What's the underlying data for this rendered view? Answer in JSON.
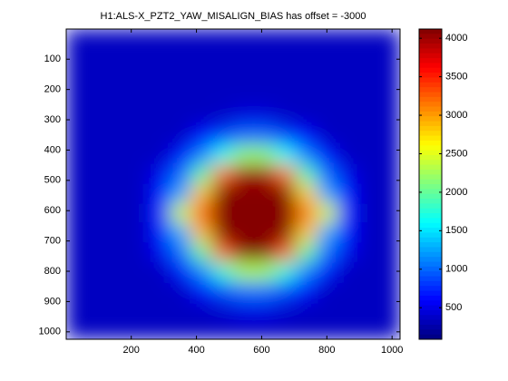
{
  "chart_data": {
    "type": "heatmap",
    "title": "H1:ALS-X_PZT2_YAW_MISALIGN_BIAS has offset = -3000",
    "colormap": "jet",
    "x": [
      32,
      96,
      160,
      224,
      288,
      352,
      416,
      480,
      544,
      608,
      672,
      736,
      800,
      864,
      928,
      992
    ],
    "y": [
      32,
      96,
      160,
      224,
      288,
      352,
      416,
      480,
      544,
      608,
      672,
      736,
      800,
      864,
      928,
      992
    ],
    "z": [
      [
        350,
        350,
        350,
        350,
        350,
        350,
        350,
        350,
        350,
        350,
        350,
        350,
        350,
        350,
        350,
        350
      ],
      [
        350,
        350,
        350,
        350,
        350,
        350,
        350,
        350,
        350,
        350,
        350,
        350,
        350,
        350,
        350,
        350
      ],
      [
        350,
        350,
        350,
        350,
        350,
        350,
        350,
        350,
        350,
        350,
        350,
        350,
        350,
        350,
        350,
        350
      ],
      [
        350,
        350,
        350,
        350,
        350,
        350,
        350,
        350,
        350,
        350,
        350,
        350,
        350,
        350,
        350,
        350
      ],
      [
        350,
        350,
        350,
        350,
        350,
        350,
        350,
        378,
        469,
        462,
        378,
        350,
        350,
        350,
        350,
        350
      ],
      [
        350,
        350,
        350,
        350,
        350,
        350,
        609,
        850,
        1000,
        1000,
        840,
        602,
        350,
        350,
        350,
        350
      ],
      [
        350,
        350,
        350,
        350,
        350,
        658,
        1090,
        1664,
        2184,
        2158,
        1638,
        1090,
        658,
        350,
        350,
        350
      ],
      [
        350,
        350,
        350,
        350,
        525,
        1020,
        1950,
        3170,
        3980,
        3980,
        3170,
        1898,
        1010,
        511,
        350,
        350
      ],
      [
        350,
        350,
        350,
        350,
        672,
        1270,
        2840,
        4100,
        4100,
        4100,
        4100,
        2780,
        1260,
        658,
        350,
        350
      ],
      [
        350,
        350,
        350,
        350,
        730,
        2418,
        3230,
        4100,
        4100,
        4100,
        4100,
        3170,
        2470,
        710,
        350,
        350
      ],
      [
        350,
        350,
        350,
        350,
        672,
        1290,
        2870,
        4100,
        4100,
        4100,
        4100,
        2810,
        1270,
        658,
        350,
        350
      ],
      [
        350,
        350,
        350,
        350,
        539,
        1040,
        2002,
        3260,
        4100,
        4100,
        3260,
        2002,
        1030,
        525,
        350,
        350
      ],
      [
        350,
        350,
        350,
        350,
        350,
        679,
        1120,
        1768,
        2288,
        2262,
        1742,
        1110,
        672,
        350,
        350,
        350
      ],
      [
        350,
        350,
        350,
        350,
        350,
        357,
        630,
        890,
        1040,
        1040,
        880,
        623,
        350,
        350,
        350,
        350
      ],
      [
        350,
        350,
        350,
        350,
        350,
        350,
        350,
        406,
        490,
        490,
        406,
        350,
        350,
        350,
        350,
        350
      ],
      [
        350,
        350,
        350,
        350,
        350,
        350,
        350,
        350,
        350,
        350,
        350,
        350,
        350,
        350,
        350,
        350
      ]
    ],
    "xlim": [
      0.5,
      1024.5
    ],
    "ylim": [
      0.5,
      1024.5
    ],
    "y_reversed": true,
    "xticks": [
      200,
      400,
      600,
      800,
      1000
    ],
    "yticks": [
      100,
      200,
      300,
      400,
      500,
      600,
      700,
      800,
      900,
      1000
    ],
    "clim": [
      90,
      4120
    ],
    "cticks": [
      500,
      1000,
      1500,
      2000,
      2500,
      3000,
      3500,
      4000
    ]
  }
}
